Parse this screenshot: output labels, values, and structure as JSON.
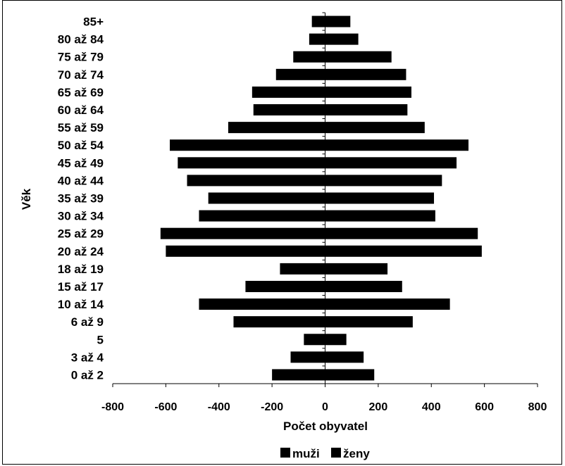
{
  "chart_data": {
    "type": "bar",
    "orientation": "horizontal",
    "stacking": "diverging",
    "title": "",
    "xlabel": "Počet obyvatel",
    "ylabel": "Věk",
    "xlim": [
      -800,
      800
    ],
    "x_ticks": [
      -800,
      -600,
      -400,
      -200,
      0,
      200,
      400,
      600,
      800
    ],
    "x_tick_labels": [
      "-800",
      "-600",
      "-400",
      "-200",
      "0",
      "200",
      "400",
      "600",
      "800"
    ],
    "categories": [
      "0 až 2",
      "3 až 4",
      "5",
      "6 až 9",
      "10 až 14",
      "15 až 17",
      "18 až 19",
      "20 až 24",
      "25 až 29",
      "30 až 34",
      "35 až 39",
      "40 až 44",
      "45 až 49",
      "50 až 54",
      "55 až 59",
      "60 až 64",
      "65 až 69",
      "70 až 74",
      "75 až 79",
      "80 až 84",
      "85+"
    ],
    "series": [
      {
        "name": "muži",
        "color": "#000000",
        "values": [
          -200,
          -130,
          -80,
          -345,
          -475,
          -300,
          -170,
          -600,
          -620,
          -475,
          -440,
          -520,
          -555,
          -585,
          -365,
          -270,
          -275,
          -185,
          -120,
          -60,
          -50
        ]
      },
      {
        "name": "ženy",
        "color": "#000000",
        "values": [
          185,
          145,
          80,
          330,
          470,
          290,
          235,
          590,
          575,
          415,
          410,
          440,
          495,
          540,
          375,
          310,
          325,
          305,
          250,
          125,
          95
        ]
      }
    ],
    "grid": false,
    "legend": {
      "position": "bottom",
      "entries": [
        "muži",
        "ženy"
      ]
    }
  }
}
